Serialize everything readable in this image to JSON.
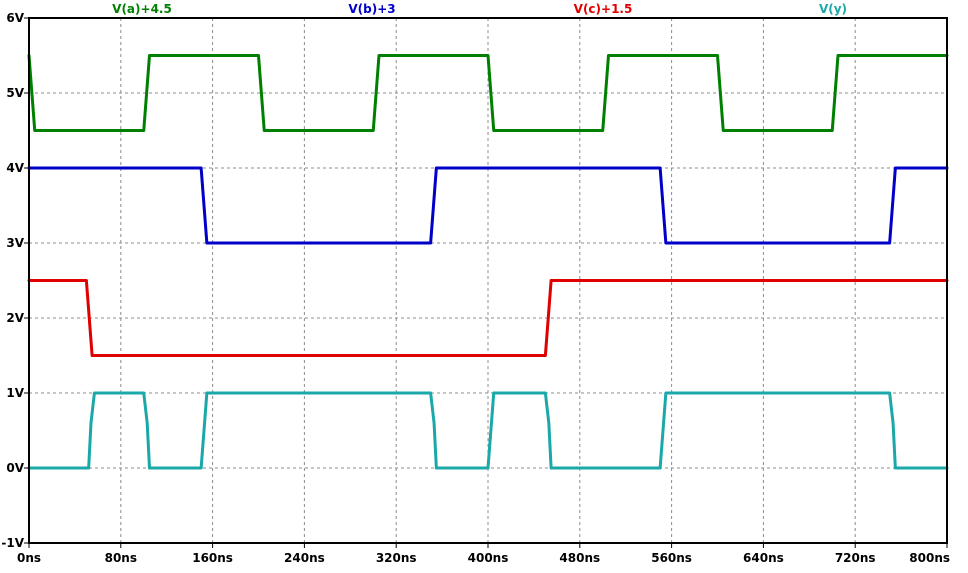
{
  "chart_data": {
    "type": "line",
    "xlabel": "",
    "ylabel": "",
    "xlim": [
      0,
      800
    ],
    "ylim": [
      -1,
      6
    ],
    "x_ticks": [
      {
        "value": 0,
        "label": "0ns"
      },
      {
        "value": 80,
        "label": "80ns"
      },
      {
        "value": 160,
        "label": "160ns"
      },
      {
        "value": 240,
        "label": "240ns"
      },
      {
        "value": 320,
        "label": "320ns"
      },
      {
        "value": 400,
        "label": "400ns"
      },
      {
        "value": 480,
        "label": "480ns"
      },
      {
        "value": 560,
        "label": "560ns"
      },
      {
        "value": 640,
        "label": "640ns"
      },
      {
        "value": 720,
        "label": "720ns"
      },
      {
        "value": 800,
        "label": "800ns"
      }
    ],
    "y_ticks": [
      {
        "value": 6,
        "label": "6V"
      },
      {
        "value": 5,
        "label": "5V"
      },
      {
        "value": 4,
        "label": "4V"
      },
      {
        "value": 3,
        "label": "3V"
      },
      {
        "value": 2,
        "label": "2V"
      },
      {
        "value": 1,
        "label": "1V"
      },
      {
        "value": 0,
        "label": "0V"
      },
      {
        "value": -1,
        "label": "-1V"
      }
    ],
    "grid": true,
    "legend_position": "top",
    "series": [
      {
        "name": "V(a)+4.5",
        "color": "#008000",
        "x": [
          0,
          5,
          100,
          105,
          200,
          205,
          300,
          305,
          400,
          405,
          500,
          505,
          600,
          605,
          700,
          705,
          800
        ],
        "y": [
          5.5,
          4.5,
          4.5,
          5.5,
          5.5,
          4.5,
          4.5,
          5.5,
          5.5,
          4.5,
          4.5,
          5.5,
          5.5,
          4.5,
          4.5,
          5.5,
          5.5
        ]
      },
      {
        "name": "V(b)+3",
        "color": "#0000c8",
        "x": [
          0,
          150,
          155,
          350,
          355,
          550,
          555,
          750,
          755,
          800
        ],
        "y": [
          4,
          4,
          3,
          3,
          4,
          4,
          3,
          3,
          4,
          4
        ]
      },
      {
        "name": "V(c)+1.5",
        "color": "#e00000",
        "x": [
          0,
          50,
          55,
          450,
          455,
          800
        ],
        "y": [
          2.5,
          2.5,
          1.5,
          1.5,
          2.5,
          2.5
        ]
      },
      {
        "name": "V(y)",
        "color": "#1aa8a8",
        "x": [
          0,
          52,
          54,
          57,
          60,
          100,
          103,
          105,
          150,
          153,
          155,
          158,
          350,
          353,
          355,
          400,
          403,
          405,
          408,
          450,
          453,
          455,
          550,
          553,
          555,
          558,
          750,
          753,
          755,
          800
        ],
        "y": [
          0,
          0,
          0.6,
          1,
          1,
          1,
          0.6,
          0,
          0,
          0.6,
          1,
          1,
          1,
          0.6,
          0,
          0,
          0.6,
          1,
          1,
          1,
          0.6,
          0,
          0,
          0.6,
          1,
          1,
          1,
          0.6,
          0,
          0
        ]
      }
    ]
  }
}
